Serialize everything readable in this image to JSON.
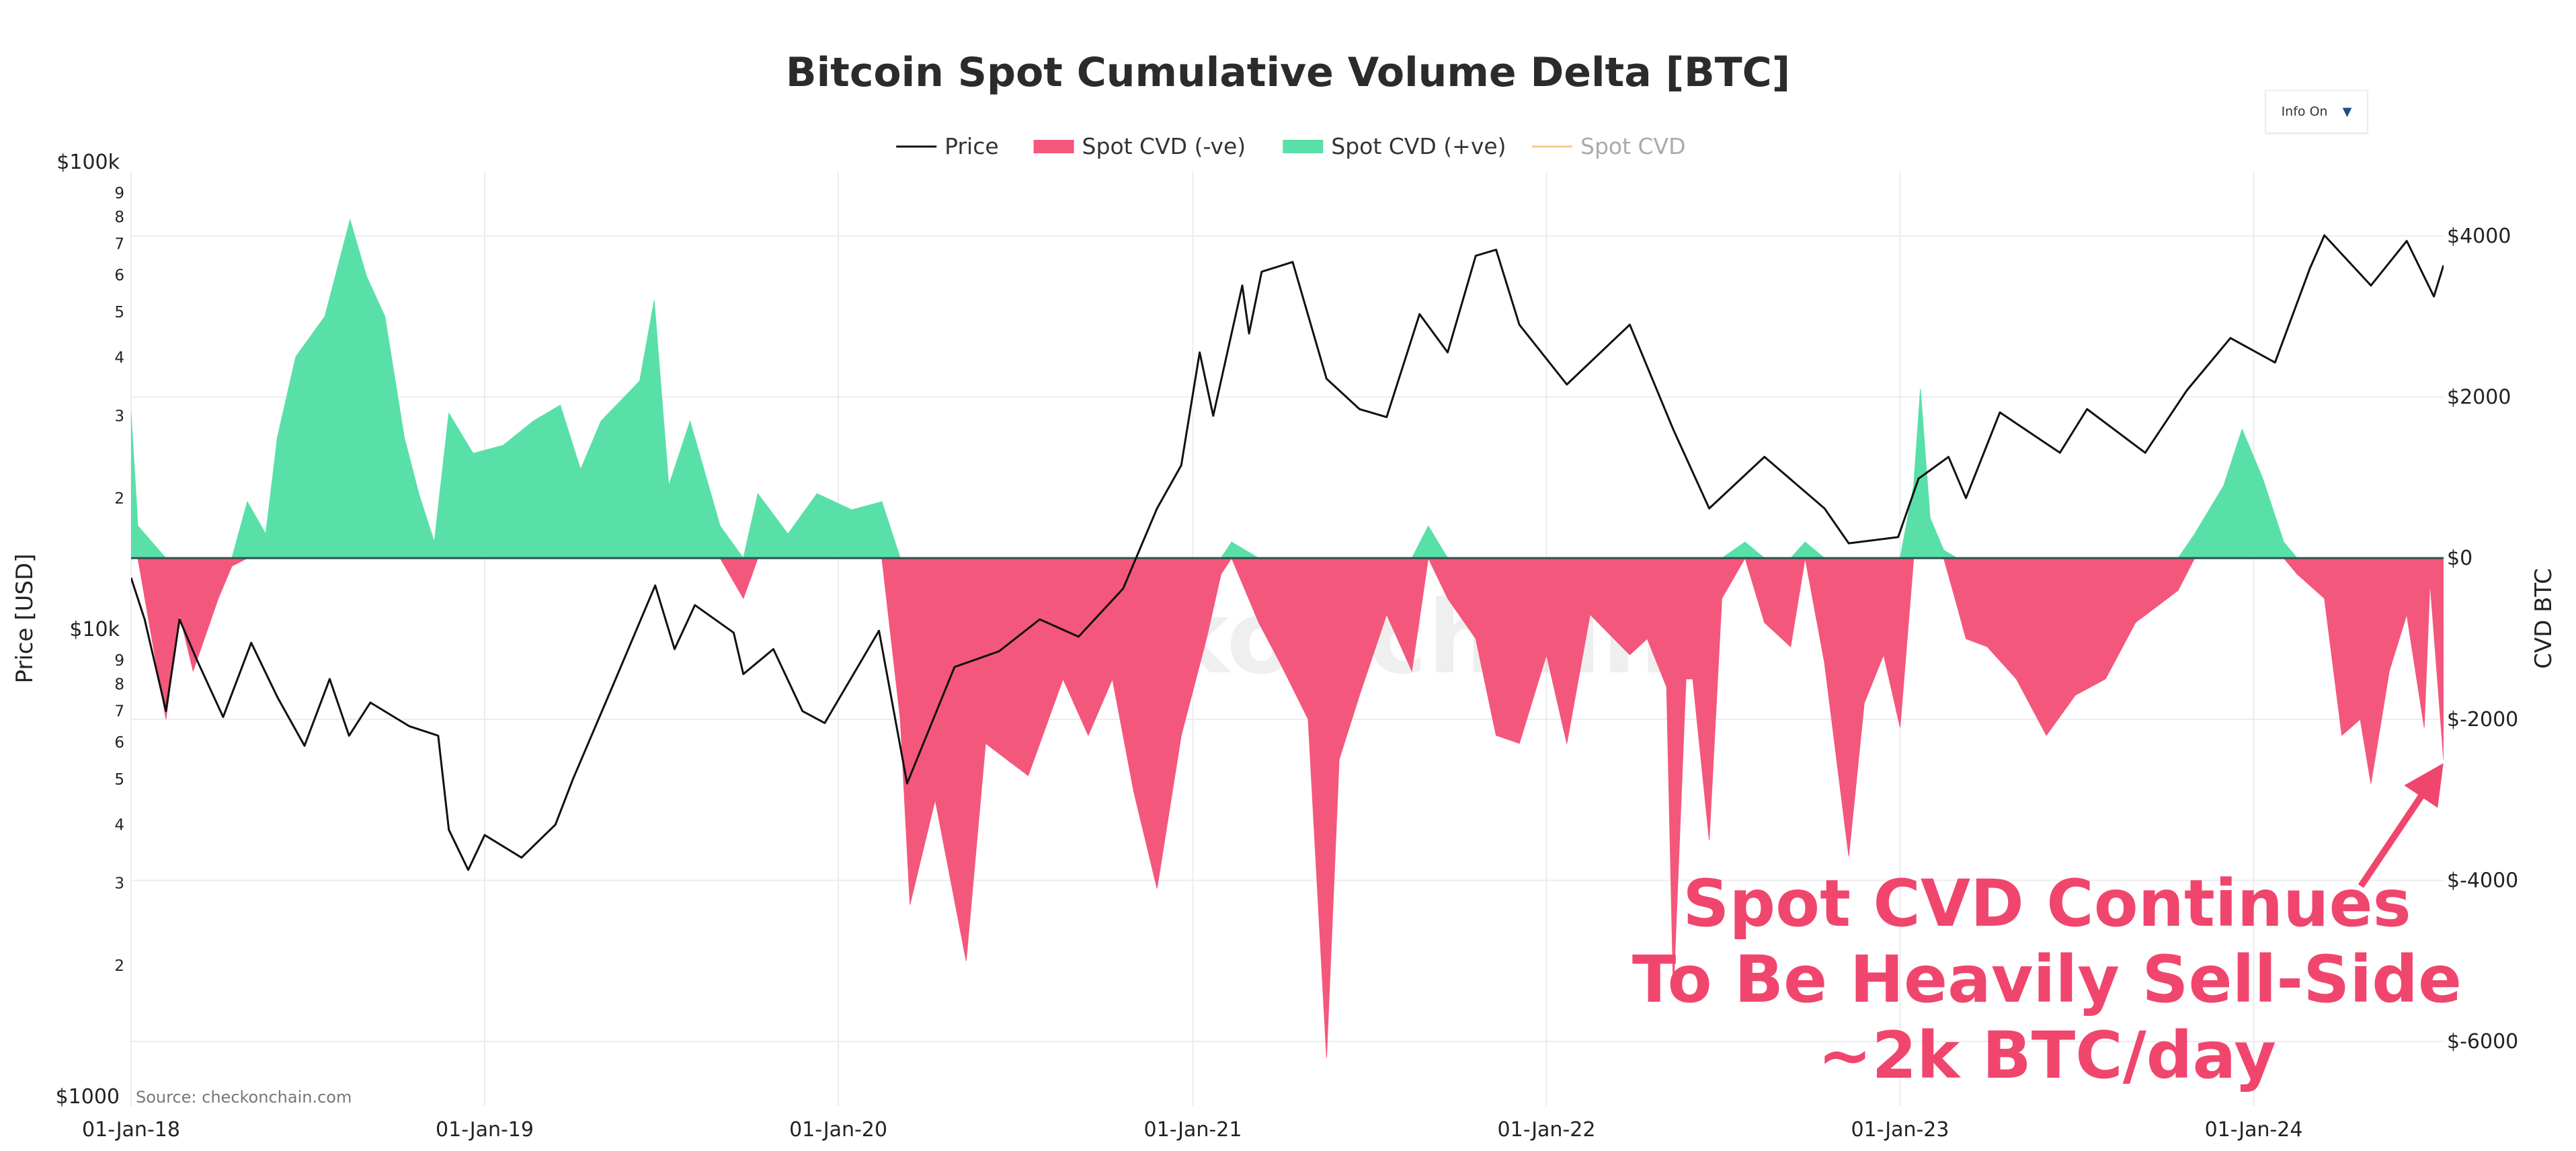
{
  "chart_data": {
    "type": "area",
    "title": "Bitcoin Spot Cumulative Volume Delta [BTC]",
    "legend": [
      {
        "name": "Price",
        "color": "#111111",
        "kind": "line"
      },
      {
        "name": "Spot CVD (-ve)",
        "color": "#f4577c",
        "kind": "area"
      },
      {
        "name": "Spot CVD (+ve)",
        "color": "#59e0a8",
        "kind": "area"
      },
      {
        "name": "Spot CVD",
        "color": "#f7c98b",
        "kind": "line",
        "hidden": true
      }
    ],
    "legend_position": "top-center",
    "x_axis": {
      "ticks": [
        "01-Jan-18",
        "01-Jan-19",
        "01-Jan-20",
        "01-Jan-21",
        "01-Jan-22",
        "01-Jan-23",
        "01-Jan-24"
      ],
      "range": [
        "2018-01-01",
        "2024-07-15"
      ]
    },
    "y_left": {
      "label": "Price [USD]",
      "scale": "log",
      "range": [
        1000,
        100000
      ],
      "major_ticks": [
        {
          "value": 1000,
          "label": "$1000"
        },
        {
          "value": 10000,
          "label": "$10k"
        },
        {
          "value": 100000,
          "label": "$100k"
        }
      ],
      "minor_ticks": [
        2,
        3,
        4,
        5,
        6,
        7,
        8,
        9
      ]
    },
    "y_right": {
      "label": "CVD BTC",
      "scale": "linear",
      "range": [
        -6800,
        4800
      ],
      "ticks": [
        {
          "value": 4000,
          "label": "$4000"
        },
        {
          "value": 2000,
          "label": "$2000"
        },
        {
          "value": 0,
          "label": "$0"
        },
        {
          "value": -2000,
          "label": "$-2000"
        },
        {
          "value": -4000,
          "label": "$-4000"
        },
        {
          "value": -6000,
          "label": "$-6000"
        }
      ]
    },
    "grid": true,
    "series": [
      {
        "name": "Price",
        "axis": "left",
        "unit": "USD",
        "points": [
          [
            "2018-01-01",
            13500
          ],
          [
            "2018-01-15",
            11000
          ],
          [
            "2018-02-06",
            7000
          ],
          [
            "2018-02-20",
            11000
          ],
          [
            "2018-03-10",
            9000
          ],
          [
            "2018-04-06",
            6800
          ],
          [
            "2018-05-05",
            9800
          ],
          [
            "2018-06-01",
            7500
          ],
          [
            "2018-06-29",
            5900
          ],
          [
            "2018-07-25",
            8200
          ],
          [
            "2018-08-14",
            6200
          ],
          [
            "2018-09-05",
            7300
          ],
          [
            "2018-10-15",
            6500
          ],
          [
            "2018-11-14",
            6200
          ],
          [
            "2018-11-25",
            3900
          ],
          [
            "2018-12-15",
            3200
          ],
          [
            "2019-01-01",
            3800
          ],
          [
            "2019-02-08",
            3400
          ],
          [
            "2019-03-15",
            4000
          ],
          [
            "2019-04-02",
            5000
          ],
          [
            "2019-05-14",
            8000
          ],
          [
            "2019-06-26",
            13000
          ],
          [
            "2019-07-16",
            9500
          ],
          [
            "2019-08-06",
            11800
          ],
          [
            "2019-09-15",
            10300
          ],
          [
            "2019-09-25",
            8400
          ],
          [
            "2019-10-26",
            9500
          ],
          [
            "2019-11-25",
            7000
          ],
          [
            "2019-12-18",
            6600
          ],
          [
            "2020-02-12",
            10400
          ],
          [
            "2020-03-12",
            4900
          ],
          [
            "2020-04-30",
            8700
          ],
          [
            "2020-06-15",
            9400
          ],
          [
            "2020-07-27",
            11000
          ],
          [
            "2020-09-05",
            10100
          ],
          [
            "2020-10-21",
            12800
          ],
          [
            "2020-11-25",
            19000
          ],
          [
            "2020-12-20",
            23500
          ],
          [
            "2021-01-08",
            41000
          ],
          [
            "2021-01-22",
            30000
          ],
          [
            "2021-02-21",
            57000
          ],
          [
            "2021-02-28",
            45000
          ],
          [
            "2021-03-13",
            61000
          ],
          [
            "2021-04-14",
            64000
          ],
          [
            "2021-05-19",
            36000
          ],
          [
            "2021-06-22",
            31000
          ],
          [
            "2021-07-20",
            29800
          ],
          [
            "2021-08-23",
            49500
          ],
          [
            "2021-09-21",
            41000
          ],
          [
            "2021-10-20",
            66000
          ],
          [
            "2021-11-10",
            68000
          ],
          [
            "2021-12-04",
            47000
          ],
          [
            "2022-01-22",
            35000
          ],
          [
            "2022-03-28",
            47000
          ],
          [
            "2022-05-12",
            28000
          ],
          [
            "2022-06-18",
            19000
          ],
          [
            "2022-08-14",
            24500
          ],
          [
            "2022-10-15",
            19000
          ],
          [
            "2022-11-09",
            16000
          ],
          [
            "2022-12-30",
            16500
          ],
          [
            "2023-01-20",
            22000
          ],
          [
            "2023-02-20",
            24500
          ],
          [
            "2023-03-10",
            20000
          ],
          [
            "2023-04-14",
            30500
          ],
          [
            "2023-06-15",
            25000
          ],
          [
            "2023-07-13",
            31000
          ],
          [
            "2023-09-11",
            25000
          ],
          [
            "2023-10-24",
            34000
          ],
          [
            "2023-12-08",
            44000
          ],
          [
            "2024-01-23",
            39000
          ],
          [
            "2024-02-28",
            62000
          ],
          [
            "2024-03-14",
            73000
          ],
          [
            "2024-05-01",
            57000
          ],
          [
            "2024-06-07",
            71000
          ],
          [
            "2024-07-05",
            54000
          ],
          [
            "2024-07-15",
            63000
          ]
        ]
      },
      {
        "name": "Spot CVD",
        "axis": "right",
        "unit": "BTC",
        "points": [
          [
            "2018-01-01",
            1800
          ],
          [
            "2018-01-08",
            400
          ],
          [
            "2018-02-06",
            -2000
          ],
          [
            "2018-02-20",
            -700
          ],
          [
            "2018-03-06",
            -1400
          ],
          [
            "2018-04-01",
            -500
          ],
          [
            "2018-04-15",
            -100
          ],
          [
            "2018-05-01",
            700
          ],
          [
            "2018-05-20",
            300
          ],
          [
            "2018-06-01",
            1500
          ],
          [
            "2018-06-20",
            2500
          ],
          [
            "2018-07-20",
            3000
          ],
          [
            "2018-08-15",
            4200
          ],
          [
            "2018-09-01",
            3500
          ],
          [
            "2018-09-20",
            3000
          ],
          [
            "2018-10-10",
            1500
          ],
          [
            "2018-10-25",
            800
          ],
          [
            "2018-11-10",
            200
          ],
          [
            "2018-11-25",
            1800
          ],
          [
            "2018-12-20",
            1300
          ],
          [
            "2019-01-20",
            1400
          ],
          [
            "2019-02-20",
            1700
          ],
          [
            "2019-03-20",
            1900
          ],
          [
            "2019-04-10",
            1100
          ],
          [
            "2019-05-01",
            1700
          ],
          [
            "2019-06-10",
            2200
          ],
          [
            "2019-06-25",
            3200
          ],
          [
            "2019-07-10",
            900
          ],
          [
            "2019-08-01",
            1700
          ],
          [
            "2019-09-01",
            400
          ],
          [
            "2019-09-25",
            -500
          ],
          [
            "2019-10-10",
            800
          ],
          [
            "2019-11-10",
            300
          ],
          [
            "2019-12-10",
            800
          ],
          [
            "2020-01-15",
            600
          ],
          [
            "2020-02-15",
            700
          ],
          [
            "2020-03-05",
            -2000
          ],
          [
            "2020-03-15",
            -4300
          ],
          [
            "2020-04-10",
            -3000
          ],
          [
            "2020-05-12",
            -5000
          ],
          [
            "2020-06-01",
            -2300
          ],
          [
            "2020-07-15",
            -2700
          ],
          [
            "2020-08-20",
            -1500
          ],
          [
            "2020-09-15",
            -2200
          ],
          [
            "2020-10-10",
            -1500
          ],
          [
            "2020-11-01",
            -2900
          ],
          [
            "2020-11-25",
            -4100
          ],
          [
            "2020-12-20",
            -2200
          ],
          [
            "2021-01-15",
            -1000
          ],
          [
            "2021-01-30",
            -200
          ],
          [
            "2021-02-10",
            200
          ],
          [
            "2021-03-10",
            -800
          ],
          [
            "2021-04-01",
            -1300
          ],
          [
            "2021-04-30",
            -2000
          ],
          [
            "2021-05-19",
            -6200
          ],
          [
            "2021-06-01",
            -2500
          ],
          [
            "2021-06-22",
            -1700
          ],
          [
            "2021-07-20",
            -700
          ],
          [
            "2021-08-15",
            -1400
          ],
          [
            "2021-09-01",
            400
          ],
          [
            "2021-09-21",
            -500
          ],
          [
            "2021-10-20",
            -1000
          ],
          [
            "2021-11-10",
            -2200
          ],
          [
            "2021-12-04",
            -2300
          ],
          [
            "2022-01-01",
            -1200
          ],
          [
            "2022-01-22",
            -2300
          ],
          [
            "2022-02-15",
            -700
          ],
          [
            "2022-03-28",
            -1200
          ],
          [
            "2022-04-15",
            -1000
          ],
          [
            "2022-05-05",
            -1600
          ],
          [
            "2022-05-12",
            -5400
          ],
          [
            "2022-05-25",
            -1500
          ],
          [
            "2022-06-01",
            -1500
          ],
          [
            "2022-06-18",
            -3500
          ],
          [
            "2022-07-01",
            -500
          ],
          [
            "2022-07-25",
            200
          ],
          [
            "2022-08-14",
            -800
          ],
          [
            "2022-09-10",
            -1100
          ],
          [
            "2022-09-25",
            200
          ],
          [
            "2022-10-15",
            -1300
          ],
          [
            "2022-11-09",
            -3700
          ],
          [
            "2022-11-25",
            -1800
          ],
          [
            "2022-12-15",
            -1200
          ],
          [
            "2023-01-01",
            -2100
          ],
          [
            "2023-01-15",
            900
          ],
          [
            "2023-01-22",
            2100
          ],
          [
            "2023-02-01",
            500
          ],
          [
            "2023-02-15",
            100
          ],
          [
            "2023-03-01",
            -600
          ],
          [
            "2023-03-10",
            -1000
          ],
          [
            "2023-04-01",
            -1100
          ],
          [
            "2023-05-01",
            -1500
          ],
          [
            "2023-06-01",
            -2200
          ],
          [
            "2023-07-01",
            -1700
          ],
          [
            "2023-08-01",
            -1500
          ],
          [
            "2023-09-01",
            -800
          ],
          [
            "2023-10-15",
            -400
          ],
          [
            "2023-11-01",
            300
          ],
          [
            "2023-12-01",
            900
          ],
          [
            "2023-12-20",
            1600
          ],
          [
            "2024-01-10",
            1000
          ],
          [
            "2024-02-01",
            200
          ],
          [
            "2024-02-15",
            -200
          ],
          [
            "2024-03-14",
            -500
          ],
          [
            "2024-04-01",
            -2200
          ],
          [
            "2024-04-20",
            -2000
          ],
          [
            "2024-05-01",
            -2800
          ],
          [
            "2024-05-20",
            -1400
          ],
          [
            "2024-06-07",
            -700
          ],
          [
            "2024-06-25",
            -2100
          ],
          [
            "2024-07-01",
            -300
          ],
          [
            "2024-07-15",
            -2500
          ]
        ]
      }
    ],
    "annotations": [
      {
        "text_lines": [
          "Spot CVD Continues",
          "To Be Heavily Sell-Side",
          "~2k BTC/day"
        ],
        "color": "#f0466e",
        "arrow": true
      }
    ],
    "watermark": "checkonchain",
    "source": "Source: checkonchain.com"
  },
  "controls": {
    "info_label": "Info On",
    "info_caret": "▼"
  }
}
